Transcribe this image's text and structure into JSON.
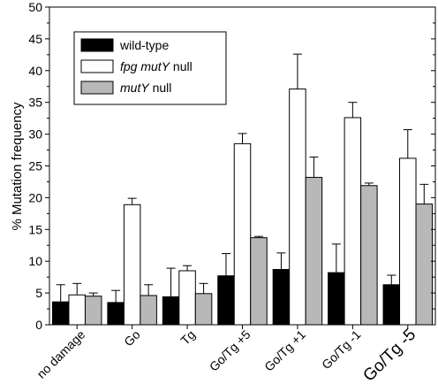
{
  "chart_data": {
    "type": "bar",
    "ylabel": "% Mutation frequency",
    "xlabel": "",
    "ylim": [
      0,
      50
    ],
    "yticks": [
      0,
      5,
      10,
      15,
      20,
      25,
      30,
      35,
      40,
      45,
      50
    ],
    "grid": false,
    "legend_position": "top-left",
    "categories": [
      "no damage",
      "Go",
      "Tg",
      "Go/Tg +5",
      "Go/Tg +1",
      "Go/Tg -1",
      "Go/Tg -5"
    ],
    "series": [
      {
        "legend_label": [
          {
            "text": "wild-type",
            "italic": false
          }
        ],
        "color": "#000000",
        "values": [
          3.6,
          3.5,
          4.4,
          7.7,
          8.7,
          8.2,
          6.3
        ],
        "errors": [
          2.7,
          1.9,
          4.5,
          3.5,
          2.6,
          4.5,
          1.5
        ]
      },
      {
        "legend_label": [
          {
            "text": "fpg mutY",
            "italic": true
          },
          {
            "text": " null",
            "italic": false
          }
        ],
        "color": "#ffffff",
        "values": [
          4.7,
          18.9,
          8.5,
          28.5,
          37.1,
          32.6,
          26.2
        ],
        "errors": [
          1.8,
          1.0,
          0.8,
          1.6,
          5.5,
          2.4,
          4.5
        ]
      },
      {
        "legend_label": [
          {
            "text": "mutY",
            "italic": true
          },
          {
            "text": " null",
            "italic": false
          }
        ],
        "color": "#b8b8b8",
        "values": [
          4.5,
          4.6,
          4.9,
          13.7,
          23.2,
          21.9,
          19.0
        ],
        "errors": [
          0.5,
          1.7,
          1.6,
          0.2,
          3.2,
          0.4,
          3.1
        ]
      }
    ]
  }
}
